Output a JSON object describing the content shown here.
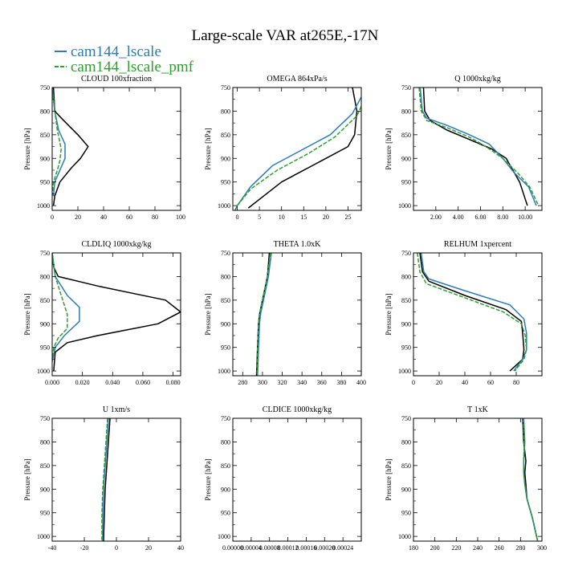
{
  "figure": {
    "title": "Large-scale VAR at265E,-17N"
  },
  "legend": [
    {
      "name": "cam144_lscale",
      "color": "#2b7bba"
    },
    {
      "name": "cam144_lscale_pmf",
      "color": "#2ca02c"
    }
  ],
  "colors": {
    "obs": "#000000",
    "lscale": "#2b7bba",
    "pmf": "#2ca02c"
  },
  "chart_data": [
    {
      "type": "line",
      "title": "CLOUD 100xfraction",
      "ylabel": "Pressure [hPa]",
      "xlim": [
        0,
        100
      ],
      "ylim": [
        1010,
        750
      ],
      "xticks": [
        0,
        20,
        40,
        60,
        80,
        100
      ],
      "xticklabels": [
        "0",
        "20",
        "40",
        "60",
        "80",
        "100"
      ],
      "yticks": [
        750,
        800,
        850,
        900,
        950,
        1000
      ],
      "series": [
        {
          "name": "",
          "color": "#000000",
          "x": [
            1,
            2,
            9,
            20,
            28,
            22,
            15,
            6,
            2,
            1
          ],
          "y": [
            750,
            800,
            820,
            850,
            875,
            900,
            920,
            950,
            980,
            1000
          ]
        },
        {
          "name": "cam144_lscale",
          "color": "#2b7bba",
          "x": [
            0,
            2,
            5,
            10,
            10,
            6,
            2,
            1
          ],
          "y": [
            750,
            800,
            840,
            870,
            900,
            925,
            950,
            980
          ]
        },
        {
          "name": "cam144_lscale_pmf",
          "color": "#2ca02c",
          "dashed": true,
          "x": [
            0,
            2,
            4,
            7,
            6,
            4,
            1,
            0
          ],
          "y": [
            750,
            800,
            840,
            880,
            905,
            925,
            950,
            980
          ]
        }
      ]
    },
    {
      "type": "line",
      "title": "OMEGA 864xPa/s",
      "ylabel": "Pressure [hPa]",
      "xlim": [
        -1,
        28
      ],
      "ylim": [
        1010,
        750
      ],
      "xticks": [
        0,
        5,
        10,
        15,
        20,
        25
      ],
      "xticklabels": [
        "0",
        "5",
        "10",
        "15",
        "20",
        "25"
      ],
      "yticks": [
        750,
        800,
        850,
        900,
        950,
        1000
      ],
      "series": [
        {
          "name": "",
          "color": "#000000",
          "x": [
            26,
            27,
            26.5,
            25,
            20,
            10,
            2.5
          ],
          "y": [
            750,
            800,
            850,
            875,
            900,
            950,
            1005
          ]
        },
        {
          "name": "cam144_lscale",
          "color": "#2b7bba",
          "x": [
            28,
            26,
            21,
            15,
            8,
            3,
            0,
            -0.5
          ],
          "y": [
            770,
            805,
            850,
            880,
            915,
            960,
            1000,
            1010
          ]
        },
        {
          "name": "cam144_lscale_pmf",
          "color": "#2ca02c",
          "dashed": true,
          "x": [
            28,
            27,
            22,
            16,
            9,
            3,
            0,
            -0.5
          ],
          "y": [
            790,
            810,
            855,
            890,
            925,
            965,
            1000,
            1010
          ]
        }
      ]
    },
    {
      "type": "line",
      "title": "Q 1000xkg/kg",
      "ylabel": "Pressure [hPa]",
      "xlim": [
        0,
        11.5
      ],
      "ylim": [
        1010,
        750
      ],
      "xticks": [
        2,
        4,
        6,
        8,
        10
      ],
      "xticklabels": [
        "2.00",
        "4.00",
        "6.00",
        "8.00",
        "10.00"
      ],
      "yticks": [
        750,
        800,
        850,
        900,
        950,
        1000
      ],
      "series": [
        {
          "name": "",
          "color": "#000000",
          "x": [
            0.9,
            1,
            1.5,
            3,
            5,
            7,
            8.3,
            9.5,
            10.2
          ],
          "y": [
            750,
            800,
            820,
            840,
            860,
            880,
            900,
            950,
            1000
          ]
        },
        {
          "name": "cam144_lscale",
          "color": "#2b7bba",
          "x": [
            0.6,
            0.8,
            1.2,
            3,
            5,
            6.8,
            8,
            9,
            10.3,
            11
          ],
          "y": [
            750,
            800,
            815,
            830,
            850,
            870,
            900,
            930,
            960,
            1000
          ]
        },
        {
          "name": "cam144_lscale_pmf",
          "color": "#2ca02c",
          "dashed": true,
          "x": [
            0.5,
            0.7,
            1.2,
            3,
            5,
            6.5,
            8,
            9.3,
            10.4,
            11.2
          ],
          "y": [
            750,
            800,
            820,
            835,
            855,
            875,
            900,
            930,
            960,
            1000
          ]
        }
      ]
    },
    {
      "type": "line",
      "title": "CLDLIQ 1000xkg/kg",
      "ylabel": "Pressure [hPa]",
      "xlim": [
        0,
        0.085
      ],
      "ylim": [
        1010,
        750
      ],
      "xticks": [
        0,
        0.02,
        0.04,
        0.06,
        0.08
      ],
      "xticklabels": [
        "0.000",
        "0.020",
        "0.040",
        "0.060",
        "0.080"
      ],
      "yticks": [
        750,
        800,
        850,
        900,
        950,
        1000
      ],
      "series": [
        {
          "name": "",
          "color": "#000000",
          "x": [
            0,
            0.001,
            0.004,
            0.03,
            0.075,
            0.085,
            0.07,
            0.03,
            0.01,
            0.002,
            0.001
          ],
          "y": [
            750,
            780,
            800,
            820,
            850,
            875,
            900,
            925,
            940,
            960,
            1000
          ]
        },
        {
          "name": "cam144_lscale",
          "color": "#2b7bba",
          "x": [
            0,
            0.002,
            0.01,
            0.018,
            0.018,
            0.008,
            0.002,
            0
          ],
          "y": [
            750,
            800,
            840,
            865,
            895,
            925,
            950,
            980
          ]
        },
        {
          "name": "cam144_lscale_pmf",
          "color": "#2ca02c",
          "dashed": true,
          "x": [
            0,
            0.002,
            0.006,
            0.01,
            0.01,
            0.004,
            0.001,
            0
          ],
          "y": [
            750,
            800,
            840,
            880,
            910,
            930,
            950,
            980
          ]
        }
      ]
    },
    {
      "type": "line",
      "title": "THETA 1.0xK",
      "ylabel": "Pressure [hPa]",
      "xlim": [
        270,
        400
      ],
      "ylim": [
        1010,
        750
      ],
      "xticks": [
        280,
        300,
        320,
        340,
        360,
        380,
        400
      ],
      "xticklabels": [
        "280",
        "300",
        "320",
        "340",
        "360",
        "380",
        "400"
      ],
      "yticks": [
        750,
        800,
        850,
        900,
        950,
        1000
      ],
      "series": [
        {
          "name": "",
          "color": "#000000",
          "x": [
            307,
            305,
            300,
            297,
            296,
            295,
            294
          ],
          "y": [
            750,
            800,
            850,
            880,
            900,
            950,
            1010
          ]
        },
        {
          "name": "cam144_lscale",
          "color": "#2b7bba",
          "x": [
            309,
            306,
            301,
            298,
            297,
            296,
            295
          ],
          "y": [
            750,
            800,
            850,
            880,
            900,
            950,
            1010
          ]
        },
        {
          "name": "cam144_lscale_pmf",
          "color": "#2ca02c",
          "dashed": true,
          "x": [
            308,
            305,
            300,
            297,
            296,
            295,
            294.5
          ],
          "y": [
            750,
            800,
            850,
            880,
            900,
            950,
            1010
          ]
        }
      ]
    },
    {
      "type": "line",
      "title": "RELHUM 1xpercent",
      "ylabel": "Pressure [hPa]",
      "xlim": [
        0,
        100
      ],
      "ylim": [
        1010,
        750
      ],
      "xticks": [
        0,
        20,
        40,
        60,
        80
      ],
      "xticklabels": [
        "0",
        "20",
        "40",
        "60",
        "80"
      ],
      "yticks": [
        750,
        800,
        850,
        900,
        950,
        1000
      ],
      "series": [
        {
          "name": "",
          "color": "#000000",
          "x": [
            5,
            7,
            12,
            40,
            72,
            84,
            85,
            86,
            85,
            75
          ],
          "y": [
            750,
            790,
            810,
            840,
            870,
            895,
            920,
            955,
            975,
            1000
          ]
        },
        {
          "name": "cam144_lscale",
          "color": "#2b7bba",
          "x": [
            6,
            8,
            12,
            40,
            75,
            86,
            88,
            88,
            85,
            78
          ],
          "y": [
            750,
            790,
            805,
            830,
            860,
            890,
            920,
            955,
            975,
            1000
          ]
        },
        {
          "name": "cam144_lscale_pmf",
          "color": "#2ca02c",
          "dashed": true,
          "x": [
            3,
            5,
            10,
            40,
            70,
            84,
            87,
            88,
            86,
            79
          ],
          "y": [
            750,
            790,
            815,
            845,
            875,
            900,
            925,
            955,
            975,
            1000
          ]
        }
      ]
    },
    {
      "type": "line",
      "title": "U 1xm/s",
      "ylabel": "Pressure [hPa]",
      "xlim": [
        -40,
        40
      ],
      "ylim": [
        1010,
        750
      ],
      "xticks": [
        -40,
        -20,
        0,
        20,
        40
      ],
      "xticklabels": [
        "-40",
        "-20",
        "0",
        "20",
        "40"
      ],
      "yticks": [
        750,
        800,
        850,
        900,
        950,
        1000
      ],
      "series": [
        {
          "name": "",
          "color": "#000000",
          "x": [
            -4,
            -5,
            -6,
            -7,
            -7.5,
            -8
          ],
          "y": [
            750,
            800,
            850,
            900,
            950,
            1010
          ]
        },
        {
          "name": "cam144_lscale",
          "color": "#2b7bba",
          "x": [
            -5,
            -6,
            -7,
            -8,
            -8.5,
            -8.5
          ],
          "y": [
            750,
            800,
            850,
            900,
            950,
            1010
          ]
        },
        {
          "name": "cam144_lscale_pmf",
          "color": "#2ca02c",
          "dashed": true,
          "x": [
            -5.5,
            -6.5,
            -7.5,
            -8.5,
            -9,
            -9
          ],
          "y": [
            750,
            800,
            850,
            900,
            950,
            1010
          ]
        }
      ]
    },
    {
      "type": "line",
      "title": "CLDICE 1000xkg/kg",
      "ylabel": "Pressure [hPa]",
      "xlim": [
        0,
        0.00028
      ],
      "ylim": [
        1010,
        750
      ],
      "xticks": [
        0,
        4e-05,
        8e-05,
        0.00012,
        0.00016,
        0.0002,
        0.00024
      ],
      "xticklabels": [
        "0.00000",
        "0.00004",
        "0.00008",
        "0.00012",
        "0.00016",
        "0.00020",
        "0.00024"
      ],
      "yticks": [
        750,
        800,
        850,
        900,
        950,
        1000
      ],
      "series": []
    },
    {
      "type": "line",
      "title": "T 1xK",
      "ylabel": "Pressure [hPa]",
      "xlim": [
        180,
        300
      ],
      "ylim": [
        1010,
        750
      ],
      "xticks": [
        180,
        200,
        220,
        240,
        260,
        280,
        300
      ],
      "xticklabels": [
        "180",
        "200",
        "220",
        "240",
        "260",
        "280",
        "300"
      ],
      "yticks": [
        750,
        800,
        850,
        900,
        950,
        1000
      ],
      "series": [
        {
          "name": "",
          "color": "#000000",
          "x": [
            282,
            283,
            285,
            284,
            285,
            286,
            291,
            296
          ],
          "y": [
            750,
            800,
            840,
            865,
            890,
            920,
            960,
            1010
          ]
        },
        {
          "name": "cam144_lscale",
          "color": "#2b7bba",
          "x": [
            283,
            284,
            283,
            283,
            284,
            286,
            291,
            296
          ],
          "y": [
            750,
            800,
            840,
            865,
            890,
            920,
            960,
            1010
          ]
        },
        {
          "name": "cam144_lscale_pmf",
          "color": "#2ca02c",
          "dashed": true,
          "x": [
            282.5,
            283.5,
            283,
            283,
            284,
            286,
            291,
            296
          ],
          "y": [
            750,
            800,
            840,
            865,
            890,
            920,
            960,
            1010
          ]
        }
      ]
    }
  ]
}
